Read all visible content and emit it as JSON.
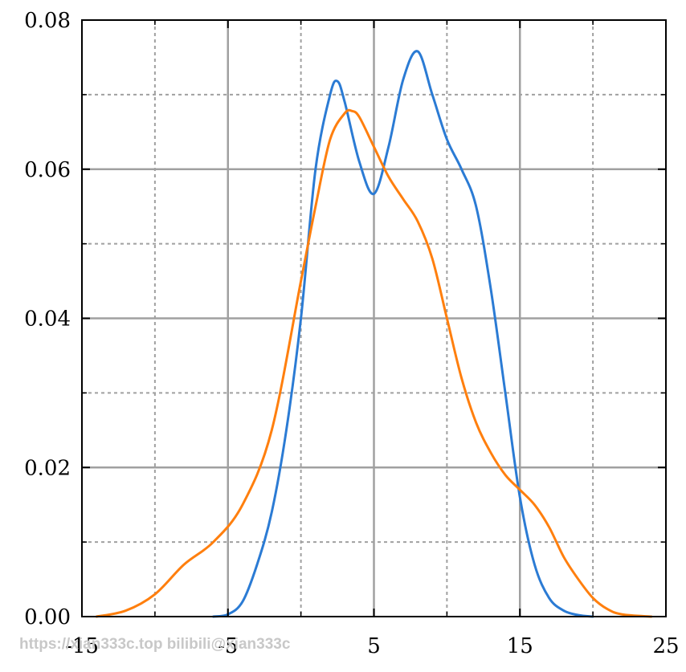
{
  "chart_data": {
    "type": "line",
    "title": "",
    "xlabel": "",
    "ylabel": "",
    "xlim": [
      -15,
      25
    ],
    "ylim": [
      0,
      0.08
    ],
    "x_ticks": [
      {
        "value": -15,
        "label": "-15"
      },
      {
        "value": -5,
        "label": "-5"
      },
      {
        "value": 5,
        "label": "5"
      },
      {
        "value": 15,
        "label": "15"
      },
      {
        "value": 25,
        "label": "25"
      }
    ],
    "y_ticks": [
      {
        "value": 0.0,
        "label": "0.00"
      },
      {
        "value": 0.02,
        "label": "0.02"
      },
      {
        "value": 0.04,
        "label": "0.04"
      },
      {
        "value": 0.06,
        "label": "0.06"
      },
      {
        "value": 0.08,
        "label": "0.08"
      }
    ],
    "major_grid_x": [
      -5,
      5,
      15
    ],
    "major_grid_y": [
      0.02,
      0.04,
      0.06
    ],
    "minor_grid_x": [
      -10,
      0,
      10,
      20
    ],
    "minor_grid_y": [
      0.01,
      0.03,
      0.05,
      0.07
    ],
    "grid": true,
    "legend": false,
    "series": [
      {
        "color": "#2b7bd4",
        "x": [
          -6,
          -5,
          -4,
          -3,
          -2,
          -1,
          0,
          1,
          2,
          2.5,
          3,
          4,
          5,
          6,
          7,
          8,
          9,
          10,
          11,
          12,
          13,
          14,
          15,
          16,
          17,
          18,
          19,
          20
        ],
        "y": [
          0,
          0.0003,
          0.002,
          0.007,
          0.014,
          0.025,
          0.04,
          0.06,
          0.07,
          0.0718,
          0.069,
          0.061,
          0.0567,
          0.063,
          0.072,
          0.0758,
          0.07,
          0.064,
          0.06,
          0.055,
          0.044,
          0.03,
          0.016,
          0.007,
          0.0025,
          0.0008,
          0.0002,
          0
        ]
      },
      {
        "color": "#ff7f0e",
        "x": [
          -14,
          -12,
          -10,
          -8,
          -6,
          -4,
          -2,
          0,
          1,
          2,
          3,
          3.5,
          4,
          5,
          6,
          7,
          8,
          9,
          10,
          11,
          12,
          13,
          14,
          15,
          16,
          17,
          18,
          19,
          20,
          21,
          22,
          24
        ],
        "y": [
          0,
          0.0008,
          0.003,
          0.007,
          0.01,
          0.015,
          0.025,
          0.045,
          0.055,
          0.064,
          0.0675,
          0.0678,
          0.067,
          0.063,
          0.059,
          0.056,
          0.053,
          0.048,
          0.04,
          0.032,
          0.026,
          0.022,
          0.019,
          0.017,
          0.015,
          0.012,
          0.008,
          0.005,
          0.0025,
          0.001,
          0.0003,
          0
        ]
      }
    ]
  },
  "watermark": "https://xian333c.top bilibili@xian333c"
}
